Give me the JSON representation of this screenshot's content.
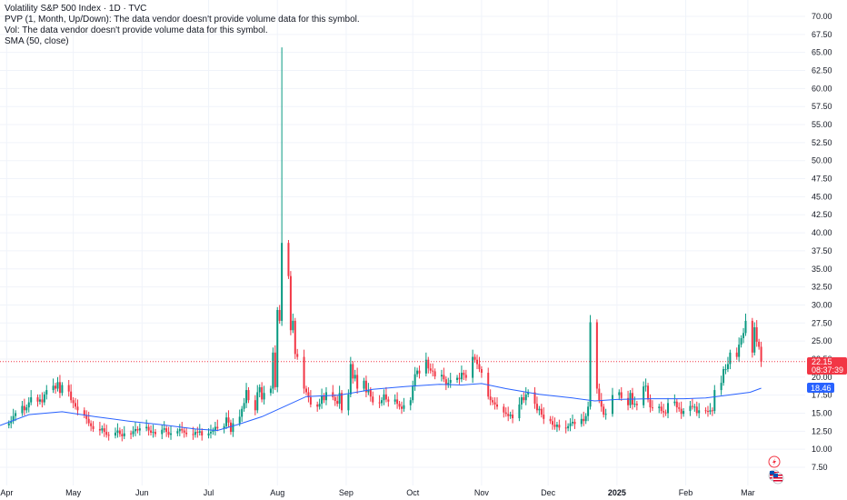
{
  "legend": {
    "title": "Volatility S&P 500 Index · 1D · TVC",
    "pvp": "PVP (1, Month, Up/Down): The data vendor doesn't provide volume data for this symbol.",
    "vol": "Vol: The data vendor doesn't provide volume data for this symbol.",
    "sma": "SMA (50, close)"
  },
  "price_tag": {
    "value": "22.15",
    "countdown": "08:37:39",
    "color": "#f23645"
  },
  "sma_tag": {
    "value": "18.46",
    "color": "#2962ff"
  },
  "colors": {
    "up": "#089981",
    "down": "#f23645",
    "sma": "#2962ff",
    "grid": "#f0f3fa"
  },
  "icons": {
    "flash": "flash-icon",
    "flag": "us-flag-icon"
  },
  "chart_data": {
    "type": "candlestick",
    "y_axis": {
      "min": 5,
      "max": 72.5,
      "ticks": [
        "7.50",
        "10.00",
        "12.50",
        "15.00",
        "17.50",
        "20.00",
        "22.50",
        "25.00",
        "27.50",
        "30.00",
        "32.50",
        "35.00",
        "37.50",
        "40.00",
        "42.50",
        "45.00",
        "47.50",
        "50.00",
        "52.50",
        "55.00",
        "57.50",
        "60.00",
        "62.50",
        "65.00",
        "67.50",
        "70.00"
      ]
    },
    "x_axis": {
      "labels": [
        {
          "text": "Apr",
          "day": 0
        },
        {
          "text": "May",
          "day": 30
        },
        {
          "text": "Jun",
          "day": 61
        },
        {
          "text": "Jul",
          "day": 91
        },
        {
          "text": "Aug",
          "day": 122
        },
        {
          "text": "Sep",
          "day": 153
        },
        {
          "text": "Oct",
          "day": 183
        },
        {
          "text": "Nov",
          "day": 214
        },
        {
          "text": "Dec",
          "day": 244
        },
        {
          "text": "2025",
          "day": 275,
          "bold": true
        },
        {
          "text": "Feb",
          "day": 306
        },
        {
          "text": "Mar",
          "day": 334
        }
      ],
      "day_span": [
        -3,
        350
      ]
    },
    "last_price": 22.15,
    "sma_last": 18.46,
    "series_close": [
      [
        1,
        13.6
      ],
      [
        2,
        13.9
      ],
      [
        3,
        14.6
      ],
      [
        4,
        15.0
      ],
      [
        7,
        16.0
      ],
      [
        8,
        15.4
      ],
      [
        9,
        15.8
      ],
      [
        10,
        16.5
      ],
      [
        11,
        17.2
      ],
      [
        14,
        16.6
      ],
      [
        15,
        16.9
      ],
      [
        16,
        16.5
      ],
      [
        17,
        17.6
      ],
      [
        18,
        18.2
      ],
      [
        21,
        18.8
      ],
      [
        22,
        18.4
      ],
      [
        23,
        19.3
      ],
      [
        24,
        17.8
      ],
      [
        25,
        18.9
      ],
      [
        28,
        18.0
      ],
      [
        29,
        16.8
      ],
      [
        30,
        16.4
      ],
      [
        31,
        15.9
      ],
      [
        32,
        15.4
      ],
      [
        35,
        14.7
      ],
      [
        36,
        14.2
      ],
      [
        37,
        13.6
      ],
      [
        38,
        13.2
      ],
      [
        39,
        12.8
      ],
      [
        42,
        12.6
      ],
      [
        43,
        12.9
      ],
      [
        44,
        12.4
      ],
      [
        45,
        12.0
      ],
      [
        46,
        11.9
      ],
      [
        49,
        12.3
      ],
      [
        50,
        12.6
      ],
      [
        51,
        12.1
      ],
      [
        52,
        11.8
      ],
      [
        53,
        12.2
      ],
      [
        56,
        12.1
      ],
      [
        57,
        12.5
      ],
      [
        58,
        12.8
      ],
      [
        59,
        12.6
      ],
      [
        60,
        12.9
      ],
      [
        63,
        13.1
      ],
      [
        64,
        12.6
      ],
      [
        65,
        12.3
      ],
      [
        66,
        12.4
      ],
      [
        67,
        12.1
      ],
      [
        70,
        12.7
      ],
      [
        71,
        12.9
      ],
      [
        72,
        12.4
      ],
      [
        73,
        12.0
      ],
      [
        74,
        12.2
      ],
      [
        77,
        12.5
      ],
      [
        78,
        12.8
      ],
      [
        79,
        12.6
      ],
      [
        80,
        12.3
      ],
      [
        81,
        12.1
      ],
      [
        84,
        12.0
      ],
      [
        85,
        12.4
      ],
      [
        86,
        12.3
      ],
      [
        87,
        12.5
      ],
      [
        88,
        11.9
      ],
      [
        91,
        12.2
      ],
      [
        92,
        12.4
      ],
      [
        93,
        12.6
      ],
      [
        94,
        13.1
      ],
      [
        95,
        12.9
      ],
      [
        98,
        13.2
      ],
      [
        99,
        14.4
      ],
      [
        100,
        13.7
      ],
      [
        101,
        12.4
      ],
      [
        102,
        13.6
      ],
      [
        105,
        14.5
      ],
      [
        106,
        15.6
      ],
      [
        107,
        16.4
      ],
      [
        108,
        18.2
      ],
      [
        109,
        16.8
      ],
      [
        112,
        15.4
      ],
      [
        113,
        17.9
      ],
      [
        114,
        18.6
      ],
      [
        115,
        16.9
      ],
      [
        116,
        17.8
      ],
      [
        119,
        18.4
      ],
      [
        120,
        23.4
      ],
      [
        121,
        18.6
      ],
      [
        122,
        29.3
      ],
      [
        123,
        27.8
      ],
      [
        124,
        38.6
      ],
      [
        127,
        34.0
      ],
      [
        128,
        26.5
      ],
      [
        129,
        27.8
      ],
      [
        130,
        23.2
      ],
      [
        131,
        22.8
      ],
      [
        134,
        18.4
      ],
      [
        135,
        17.9
      ],
      [
        136,
        17.2
      ],
      [
        137,
        16.2
      ],
      [
        140,
        15.9
      ],
      [
        141,
        16.3
      ],
      [
        142,
        17.4
      ],
      [
        143,
        16.8
      ],
      [
        144,
        17.9
      ],
      [
        147,
        17.2
      ],
      [
        148,
        16.7
      ],
      [
        149,
        16.3
      ],
      [
        150,
        17.8
      ],
      [
        151,
        15.4
      ],
      [
        154,
        17.6
      ],
      [
        155,
        21.8
      ],
      [
        156,
        19.8
      ],
      [
        157,
        20.3
      ],
      [
        158,
        18.4
      ],
      [
        161,
        19.5
      ],
      [
        162,
        17.9
      ],
      [
        163,
        18.2
      ],
      [
        164,
        17.3
      ],
      [
        165,
        16.5
      ],
      [
        168,
        16.4
      ],
      [
        169,
        16.8
      ],
      [
        170,
        17.6
      ],
      [
        171,
        16.9
      ],
      [
        172,
        16.6
      ],
      [
        175,
        16.9
      ],
      [
        176,
        16.3
      ],
      [
        177,
        15.9
      ],
      [
        178,
        15.6
      ],
      [
        179,
        16.1
      ],
      [
        182,
        16.8
      ],
      [
        183,
        18.8
      ],
      [
        184,
        20.4
      ],
      [
        185,
        20.9
      ],
      [
        186,
        20.5
      ],
      [
        189,
        22.4
      ],
      [
        190,
        21.2
      ],
      [
        191,
        20.9
      ],
      [
        192,
        20.8
      ],
      [
        193,
        20.1
      ],
      [
        196,
        20.3
      ],
      [
        197,
        19.7
      ],
      [
        198,
        18.9
      ],
      [
        199,
        19.2
      ],
      [
        200,
        19.6
      ],
      [
        203,
        19.9
      ],
      [
        204,
        19.7
      ],
      [
        205,
        20.6
      ],
      [
        206,
        20.3
      ],
      [
        207,
        19.9
      ],
      [
        210,
        22.8
      ],
      [
        211,
        22.4
      ],
      [
        212,
        21.8
      ],
      [
        213,
        21.1
      ],
      [
        214,
        20.6
      ],
      [
        217,
        17.3
      ],
      [
        218,
        16.8
      ],
      [
        219,
        16.5
      ],
      [
        220,
        16.2
      ],
      [
        221,
        15.9
      ],
      [
        224,
        15.1
      ],
      [
        225,
        14.9
      ],
      [
        226,
        14.6
      ],
      [
        227,
        14.8
      ],
      [
        228,
        14.3
      ],
      [
        231,
        16.2
      ],
      [
        232,
        17.2
      ],
      [
        233,
        16.8
      ],
      [
        234,
        17.6
      ],
      [
        235,
        17.9
      ],
      [
        238,
        16.3
      ],
      [
        239,
        15.4
      ],
      [
        240,
        15.6
      ],
      [
        241,
        14.8
      ],
      [
        242,
        14.2
      ],
      [
        245,
        13.9
      ],
      [
        246,
        13.4
      ],
      [
        247,
        13.1
      ],
      [
        248,
        13.4
      ],
      [
        249,
        13.0
      ],
      [
        252,
        12.9
      ],
      [
        253,
        13.2
      ],
      [
        254,
        13.6
      ],
      [
        255,
        13.8
      ],
      [
        256,
        13.5
      ],
      [
        259,
        14.2
      ],
      [
        260,
        13.9
      ],
      [
        261,
        14.6
      ],
      [
        262,
        15.9
      ],
      [
        263,
        27.6
      ],
      [
        266,
        18.4
      ],
      [
        267,
        16.8
      ],
      [
        268,
        15.9
      ],
      [
        269,
        14.8
      ],
      [
        270,
        14.9
      ],
      [
        273,
        17.5
      ],
      [
        276,
        17.9
      ],
      [
        277,
        17.1
      ],
      [
        280,
        16.1
      ],
      [
        281,
        17.8
      ],
      [
        282,
        16.2
      ],
      [
        283,
        16.3
      ],
      [
        284,
        16.1
      ],
      [
        287,
        18.7
      ],
      [
        288,
        18.8
      ],
      [
        289,
        16.9
      ],
      [
        290,
        15.8
      ],
      [
        291,
        15.7
      ],
      [
        294,
        15.9
      ],
      [
        295,
        15.3
      ],
      [
        296,
        15.1
      ],
      [
        297,
        15.0
      ],
      [
        298,
        16.4
      ],
      [
        301,
        16.6
      ],
      [
        302,
        15.8
      ],
      [
        303,
        15.6
      ],
      [
        304,
        14.9
      ],
      [
        305,
        15.3
      ],
      [
        308,
        16.0
      ],
      [
        309,
        15.9
      ],
      [
        310,
        15.9
      ],
      [
        311,
        15.0
      ],
      [
        312,
        15.4
      ],
      [
        315,
        15.3
      ],
      [
        316,
        15.2
      ],
      [
        317,
        15.4
      ],
      [
        318,
        15.3
      ],
      [
        319,
        18.2
      ],
      [
        322,
        19.2
      ],
      [
        323,
        21.1
      ],
      [
        324,
        21.1
      ],
      [
        325,
        21.8
      ],
      [
        326,
        23.4
      ],
      [
        329,
        22.8
      ],
      [
        330,
        24.5
      ],
      [
        331,
        25.4
      ],
      [
        332,
        26.1
      ],
      [
        333,
        27.8
      ],
      [
        336,
        23.4
      ],
      [
        337,
        26.9
      ],
      [
        338,
        24.9
      ],
      [
        339,
        24.2
      ],
      [
        340,
        22.1
      ]
    ],
    "sma_series": [
      [
        -3,
        13.3
      ],
      [
        10,
        14.8
      ],
      [
        25,
        15.2
      ],
      [
        40,
        14.5
      ],
      [
        55,
        13.9
      ],
      [
        70,
        13.4
      ],
      [
        85,
        12.8
      ],
      [
        95,
        12.6
      ],
      [
        105,
        13.5
      ],
      [
        115,
        14.5
      ],
      [
        125,
        15.9
      ],
      [
        135,
        17.3
      ],
      [
        150,
        17.5
      ],
      [
        165,
        18.3
      ],
      [
        180,
        18.7
      ],
      [
        195,
        19.0
      ],
      [
        205,
        18.9
      ],
      [
        214,
        19.1
      ],
      [
        225,
        18.4
      ],
      [
        240,
        17.6
      ],
      [
        255,
        17.1
      ],
      [
        265,
        16.7
      ],
      [
        275,
        16.9
      ],
      [
        290,
        17.0
      ],
      [
        305,
        17.0
      ],
      [
        315,
        17.1
      ],
      [
        325,
        17.5
      ],
      [
        335,
        17.9
      ],
      [
        340,
        18.46
      ]
    ]
  }
}
